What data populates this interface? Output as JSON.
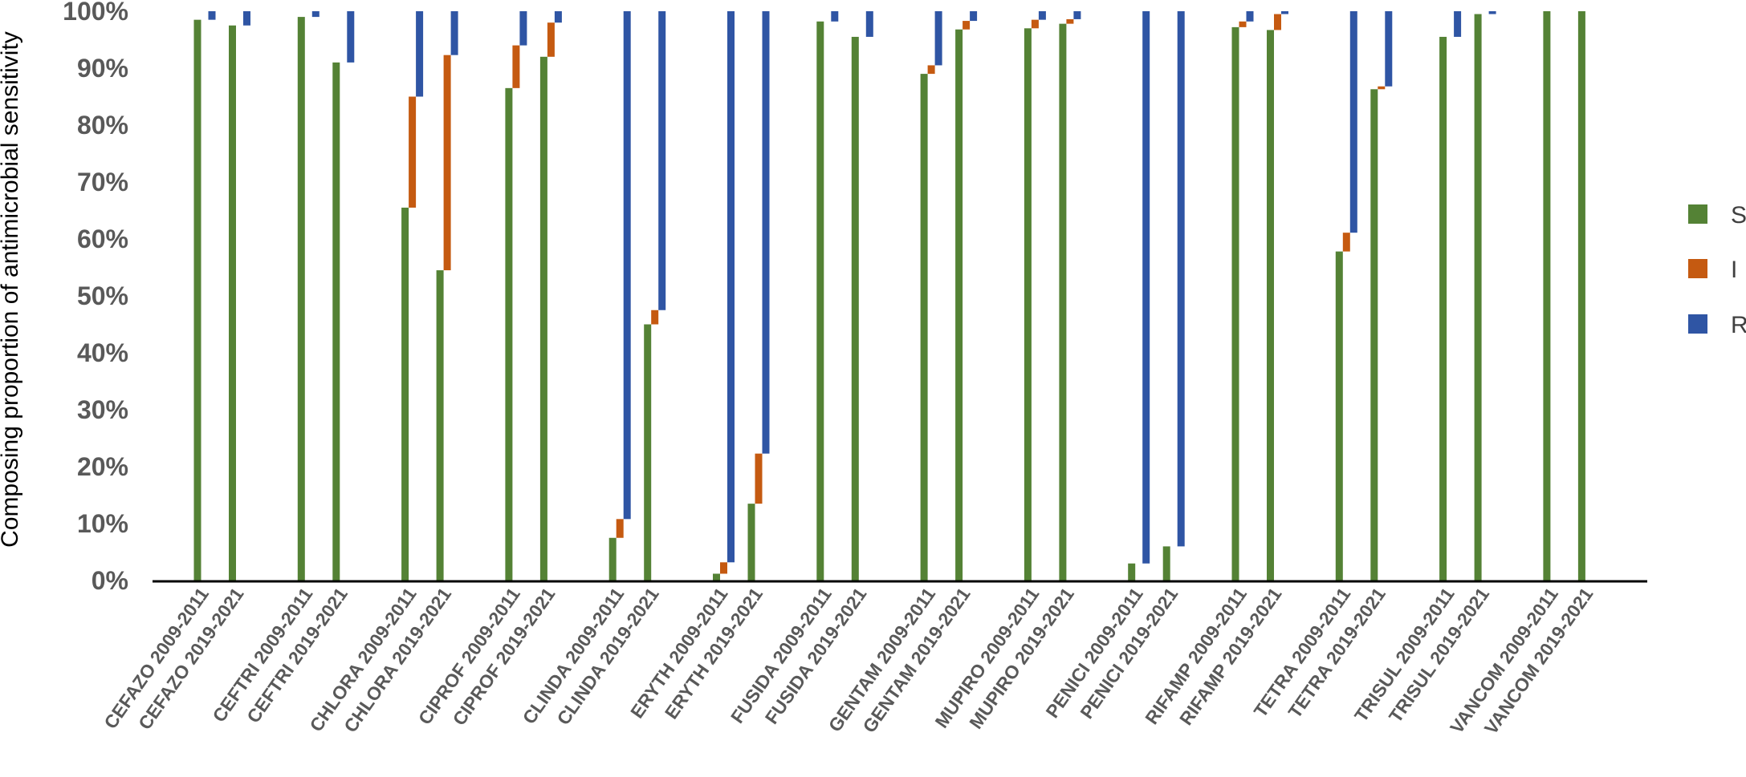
{
  "chart_data": {
    "type": "bar",
    "stacked": true,
    "ylabel": "Composing proportion of antimicrobial sensitivity",
    "xlabel": "",
    "ylim": [
      0,
      100
    ],
    "yticks": [
      "0%",
      "10%",
      "20%",
      "30%",
      "40%",
      "50%",
      "60%",
      "70%",
      "80%",
      "90%",
      "100%"
    ],
    "legend_position": "right",
    "grid": false,
    "categories": [
      "CEFAZO 2009-2011",
      "CEFAZO 2019-2021",
      "CEFTRI 2009-2011",
      "CEFTRI 2019-2021",
      "CHLORA 2009-2011",
      "CHLORA 2019-2021",
      "CIPROF 2009-2011",
      "CIPROF 2019-2021",
      "CLINDA 2009-2011",
      "CLINDA 2019-2021",
      "ERYTH 2009-2011",
      "ERYTH 2019-2021",
      "FUSIDA 2009-2011",
      "FUSIDA 2019-2021",
      "GENTAM 2009-2011",
      "GENTAM 2019-2021",
      "MUPIRO 2009-2011",
      "MUPIRO 2019-2021",
      "PENICI 2009-2011",
      "PENICI 2019-2021",
      "RIFAMP 2009-2011",
      "RIFAMP 2019-2021",
      "TETRA 2009-2011",
      "TETRA 2019-2021",
      "TRISUL 2009-2011",
      "TRISUL 2019-2021",
      "VANCOM 2009-2011",
      "VANCOM 2019-2021"
    ],
    "series": [
      {
        "name": "S",
        "color": "#548235",
        "values": [
          98.5,
          97.5,
          99,
          91,
          65.5,
          54.5,
          86.5,
          92,
          7.5,
          45,
          1.2,
          13.5,
          98.2,
          95.5,
          89,
          96.8,
          97,
          97.8,
          3,
          6,
          97.2,
          96.7,
          57.8,
          86.3,
          95.5,
          99.5,
          100,
          100
        ]
      },
      {
        "name": "I",
        "color": "#C55A11",
        "values": [
          0,
          0,
          0,
          0,
          19.5,
          37.8,
          7.5,
          6,
          3.3,
          2.5,
          2,
          8.8,
          0,
          0,
          1.5,
          1.5,
          1.5,
          0.8,
          0,
          0,
          1,
          2.8,
          3.3,
          0.5,
          0,
          0,
          0,
          0
        ]
      },
      {
        "name": "R",
        "color": "#2F55A4",
        "values": [
          1.5,
          2.5,
          1,
          9,
          15,
          7.7,
          6,
          2,
          89.2,
          52.5,
          96.8,
          77.7,
          1.8,
          4.5,
          9.5,
          1.7,
          1.5,
          1.4,
          97,
          94,
          1.8,
          0.5,
          38.9,
          13.2,
          4.5,
          0.5,
          0,
          0
        ]
      }
    ]
  }
}
